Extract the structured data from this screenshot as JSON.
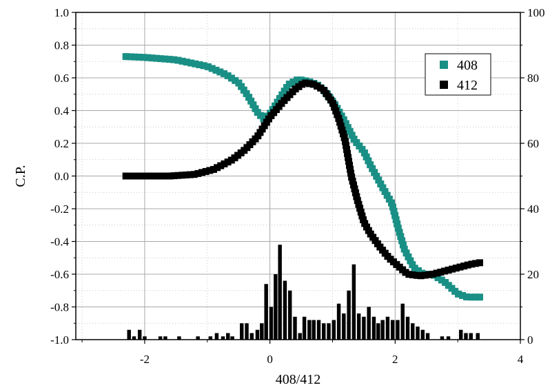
{
  "chart_data": {
    "type": "scatter",
    "xlabel": "408/412",
    "ylabel": "C.P.",
    "y2label": "",
    "xlim": [
      -3.1,
      4.0
    ],
    "ylim": [
      -1.0,
      1.0
    ],
    "y2lim": [
      0,
      100
    ],
    "x_ticks": [
      -2,
      0,
      2,
      4
    ],
    "x_tick_labels": [
      "-2",
      "0",
      "2",
      "4"
    ],
    "y_ticks": [
      -1.0,
      -0.8,
      -0.6,
      -0.4,
      -0.2,
      0.0,
      0.2,
      0.4,
      0.6,
      0.8,
      1.0
    ],
    "y_tick_labels": [
      "-1.0",
      "-0.8",
      "-0.6",
      "-0.4",
      "-0.2",
      "0.0",
      "0.2",
      "0.4",
      "0.6",
      "0.8",
      "1.0"
    ],
    "y2_ticks": [
      0,
      20,
      40,
      60,
      80,
      100
    ],
    "y2_tick_labels": [
      "0",
      "20",
      "40",
      "60",
      "80",
      "100"
    ],
    "grid": true,
    "legend_position": "top-right",
    "series": [
      {
        "name": "408",
        "marker": "square",
        "color": "#1a8f85",
        "curve": [
          [
            -2.3,
            0.73
          ],
          [
            -2.0,
            0.725
          ],
          [
            -1.5,
            0.71
          ],
          [
            -1.0,
            0.67
          ],
          [
            -0.7,
            0.62
          ],
          [
            -0.5,
            0.57
          ],
          [
            -0.35,
            0.49
          ],
          [
            -0.2,
            0.39
          ],
          [
            -0.1,
            0.35
          ],
          [
            0.0,
            0.38
          ],
          [
            0.15,
            0.47
          ],
          [
            0.3,
            0.56
          ],
          [
            0.45,
            0.59
          ],
          [
            0.6,
            0.58
          ],
          [
            0.75,
            0.56
          ],
          [
            0.9,
            0.51
          ],
          [
            1.05,
            0.43
          ],
          [
            1.2,
            0.33
          ],
          [
            1.35,
            0.22
          ],
          [
            1.5,
            0.15
          ],
          [
            1.6,
            0.07
          ],
          [
            1.7,
            0.0
          ],
          [
            1.8,
            -0.07
          ],
          [
            1.95,
            -0.17
          ],
          [
            2.05,
            -0.32
          ],
          [
            2.15,
            -0.45
          ],
          [
            2.3,
            -0.56
          ],
          [
            2.45,
            -0.6
          ],
          [
            2.6,
            -0.6
          ],
          [
            2.8,
            -0.65
          ],
          [
            3.0,
            -0.72
          ],
          [
            3.15,
            -0.74
          ],
          [
            3.35,
            -0.74
          ]
        ],
        "count": 120
      },
      {
        "name": "412",
        "marker": "square",
        "color": "#000000",
        "curve": [
          [
            -2.3,
            0.0
          ],
          [
            -2.0,
            0.0
          ],
          [
            -1.6,
            0.0
          ],
          [
            -1.2,
            0.01
          ],
          [
            -0.9,
            0.04
          ],
          [
            -0.6,
            0.1
          ],
          [
            -0.4,
            0.16
          ],
          [
            -0.2,
            0.24
          ],
          [
            0.0,
            0.36
          ],
          [
            0.2,
            0.45
          ],
          [
            0.4,
            0.53
          ],
          [
            0.55,
            0.57
          ],
          [
            0.7,
            0.56
          ],
          [
            0.85,
            0.53
          ],
          [
            1.0,
            0.45
          ],
          [
            1.1,
            0.35
          ],
          [
            1.2,
            0.22
          ],
          [
            1.3,
            0.0
          ],
          [
            1.4,
            -0.15
          ],
          [
            1.5,
            -0.28
          ],
          [
            1.6,
            -0.35
          ],
          [
            1.75,
            -0.43
          ],
          [
            1.9,
            -0.5
          ],
          [
            2.05,
            -0.55
          ],
          [
            2.2,
            -0.6
          ],
          [
            2.4,
            -0.61
          ],
          [
            2.6,
            -0.6
          ],
          [
            2.8,
            -0.58
          ],
          [
            3.0,
            -0.56
          ],
          [
            3.2,
            -0.54
          ],
          [
            3.35,
            -0.53
          ]
        ],
        "count": 130
      },
      {
        "name": "",
        "type": "bar",
        "axis": "right",
        "color": "#000000",
        "bar_width": 0.06,
        "bars": [
          [
            -2.25,
            3
          ],
          [
            -2.17,
            1
          ],
          [
            -2.08,
            3
          ],
          [
            -2.0,
            1
          ],
          [
            -1.75,
            1
          ],
          [
            -1.67,
            1
          ],
          [
            -1.45,
            1
          ],
          [
            -1.15,
            1
          ],
          [
            -0.95,
            1
          ],
          [
            -0.85,
            2
          ],
          [
            -0.75,
            1
          ],
          [
            -0.67,
            2
          ],
          [
            -0.6,
            1
          ],
          [
            -0.45,
            5
          ],
          [
            -0.37,
            5
          ],
          [
            -0.29,
            2
          ],
          [
            -0.2,
            3
          ],
          [
            -0.13,
            5
          ],
          [
            -0.06,
            17
          ],
          [
            0.02,
            10
          ],
          [
            0.09,
            20
          ],
          [
            0.16,
            29
          ],
          [
            0.24,
            18
          ],
          [
            0.32,
            15
          ],
          [
            0.4,
            7
          ],
          [
            0.48,
            2
          ],
          [
            0.55,
            7
          ],
          [
            0.63,
            6
          ],
          [
            0.7,
            6
          ],
          [
            0.78,
            6
          ],
          [
            0.86,
            5
          ],
          [
            0.94,
            5
          ],
          [
            1.02,
            6
          ],
          [
            1.1,
            11
          ],
          [
            1.18,
            8
          ],
          [
            1.26,
            15
          ],
          [
            1.34,
            23
          ],
          [
            1.42,
            8
          ],
          [
            1.5,
            7
          ],
          [
            1.58,
            10
          ],
          [
            1.66,
            7
          ],
          [
            1.73,
            5
          ],
          [
            1.8,
            6
          ],
          [
            1.88,
            7
          ],
          [
            1.96,
            6
          ],
          [
            2.04,
            6
          ],
          [
            2.12,
            11
          ],
          [
            2.2,
            7
          ],
          [
            2.28,
            5
          ],
          [
            2.36,
            4
          ],
          [
            2.44,
            3
          ],
          [
            2.52,
            2
          ],
          [
            2.75,
            1
          ],
          [
            2.85,
            1
          ],
          [
            3.05,
            3
          ],
          [
            3.13,
            2
          ],
          [
            3.21,
            2
          ],
          [
            3.32,
            2
          ]
        ]
      }
    ]
  }
}
